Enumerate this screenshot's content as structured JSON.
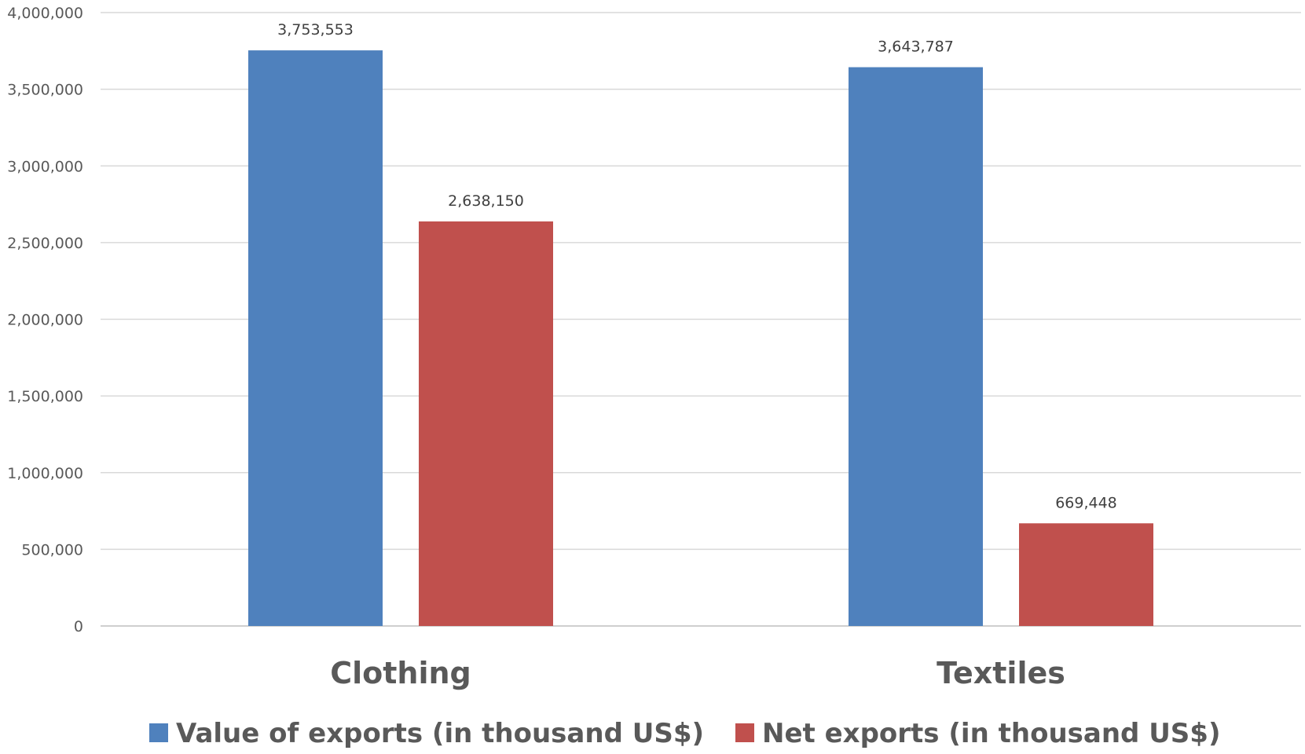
{
  "chart_data": {
    "type": "bar",
    "categories": [
      "Clothing",
      "Textiles"
    ],
    "series": [
      {
        "name": "Value of exports (in thousand US$)",
        "values": [
          3753553,
          3643787
        ],
        "labels": [
          "3,753,553",
          "3,643,787"
        ],
        "color": "#4f81bd"
      },
      {
        "name": "Net exports (in thousand US$)",
        "values": [
          2638150,
          669448
        ],
        "labels": [
          "2,638,150",
          "669,448"
        ],
        "color": "#c0504d"
      }
    ],
    "ylim": [
      0,
      4000000
    ],
    "yticks": [
      0,
      500000,
      1000000,
      1500000,
      2000000,
      2500000,
      3000000,
      3500000,
      4000000
    ],
    "ytick_labels": [
      "0",
      "500,000",
      "1,000,000",
      "1,500,000",
      "2,000,000",
      "2,500,000",
      "3,000,000",
      "3,500,000",
      "4,000,000"
    ],
    "title": "",
    "xlabel": "",
    "ylabel": "",
    "grid": true,
    "legend_position": "bottom"
  }
}
